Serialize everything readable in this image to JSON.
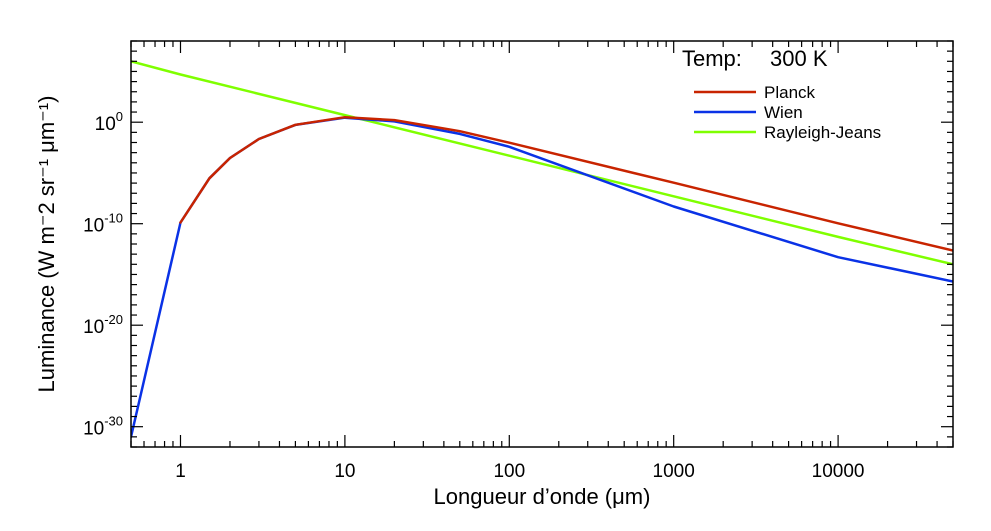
{
  "chart_data": {
    "type": "line",
    "xlabel": "Longueur d’onde (μm)",
    "ylabel": "Luminance (W m⁻2 sr⁻¹  μm⁻¹)",
    "x_scale": "log",
    "y_scale": "log",
    "xlim": [
      0.5,
      50000
    ],
    "ylim": [
      1e-32,
      100000000.0
    ],
    "x_ticks": [
      {
        "value": 1,
        "label": "1"
      },
      {
        "value": 10,
        "label": "10"
      },
      {
        "value": 100,
        "label": "100"
      },
      {
        "value": 1000,
        "label": "1000"
      },
      {
        "value": 10000,
        "label": "10000"
      }
    ],
    "y_ticks": [
      {
        "value": 1,
        "base": "10",
        "exp": "0"
      },
      {
        "value": 1e-10,
        "base": "10",
        "exp": "-10"
      },
      {
        "value": 1e-20,
        "base": "10",
        "exp": "-20"
      },
      {
        "value": 1e-30,
        "base": "10",
        "exp": "-30"
      }
    ],
    "temperature": {
      "label": "Temp:",
      "value": "300 K"
    },
    "legend_position": "top-right",
    "series": [
      {
        "name": "Planck",
        "color": "#c82400",
        "x": [
          1,
          1.5,
          2,
          3,
          5,
          10,
          20,
          50,
          100,
          1000,
          10000,
          50000
        ],
        "y": [
          1.3e-10,
          3e-06,
          0.0003,
          0.022,
          0.55,
          3.1,
          1.6,
          0.13,
          0.0095,
          1.1e-06,
          1.1e-10,
          2.3e-13
        ]
      },
      {
        "name": "Wien",
        "color": "#0a32e6",
        "x": [
          0.5,
          1,
          1.5,
          2,
          3,
          5,
          10,
          20,
          50,
          100,
          1000,
          10000,
          50000
        ],
        "y": [
          1e-31,
          1.3e-10,
          3e-06,
          0.0003,
          0.022,
          0.54,
          2.8,
          1.2,
          0.07,
          0.0038,
          5e-09,
          5e-14,
          2e-16
        ]
      },
      {
        "name": "Rayleigh-Jeans",
        "color": "#7fff00",
        "x": [
          0.5,
          1,
          10,
          100,
          1000,
          10000,
          50000
        ],
        "y": [
          1000000.0,
          50000.0,
          5,
          0.0005,
          5e-08,
          5e-12,
          1e-14
        ]
      }
    ]
  }
}
